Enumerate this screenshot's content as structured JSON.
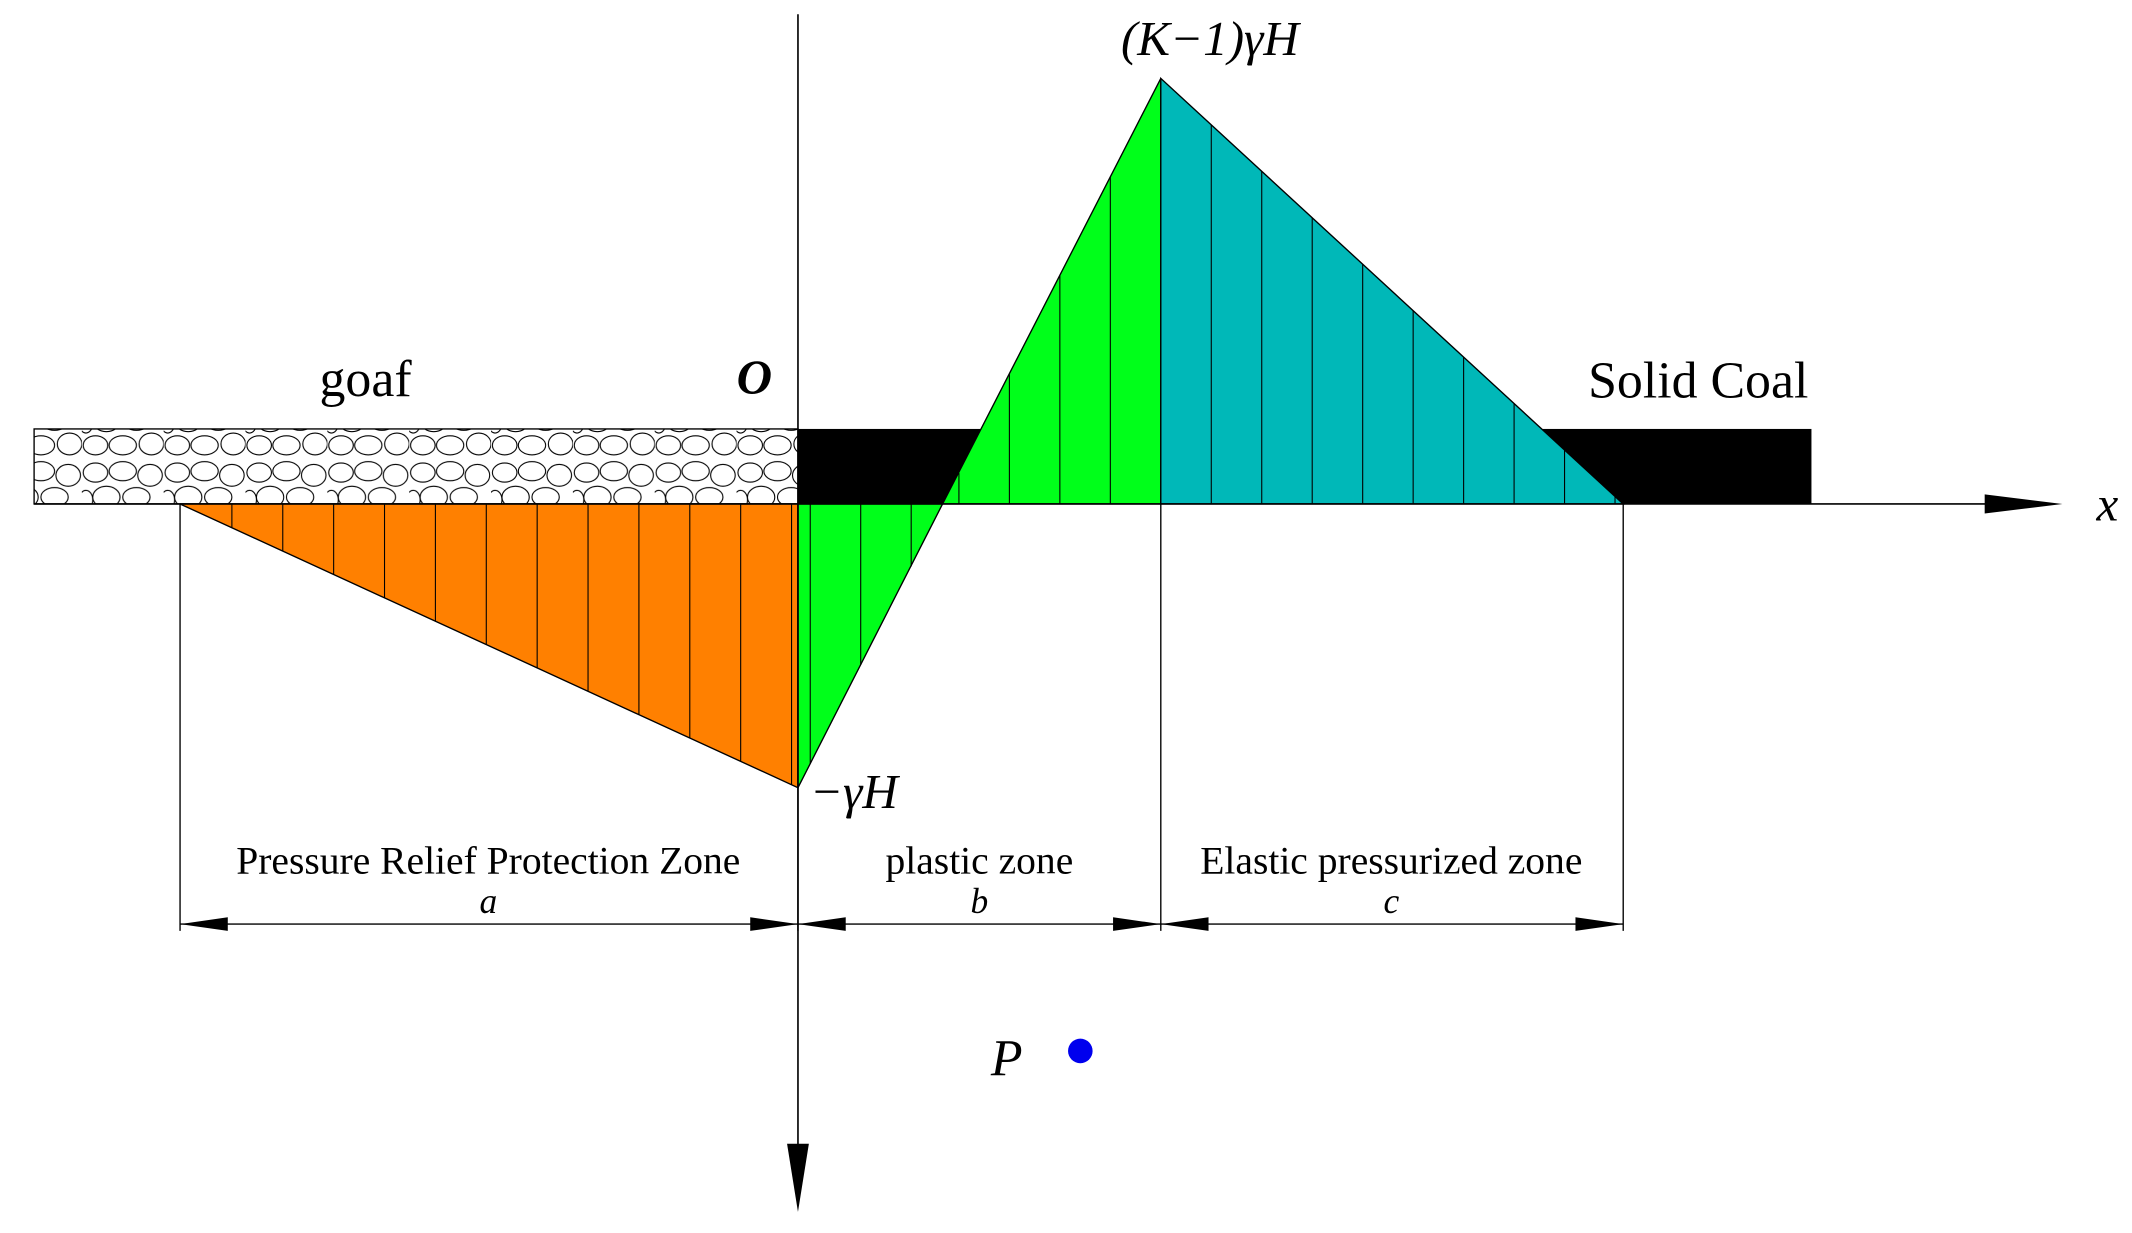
{
  "labels": {
    "peak": "(K−1)γH",
    "goaf": "goaf",
    "origin": "O",
    "solid_coal": "Solid Coal",
    "x_axis": "x",
    "trough": "−γH",
    "point": "P"
  },
  "zones": [
    {
      "name": "Pressure Relief Protection Zone",
      "symbol": "a"
    },
    {
      "name": "plastic zone",
      "symbol": "b"
    },
    {
      "name": "Elastic pressurized zone",
      "symbol": "c"
    }
  ]
}
